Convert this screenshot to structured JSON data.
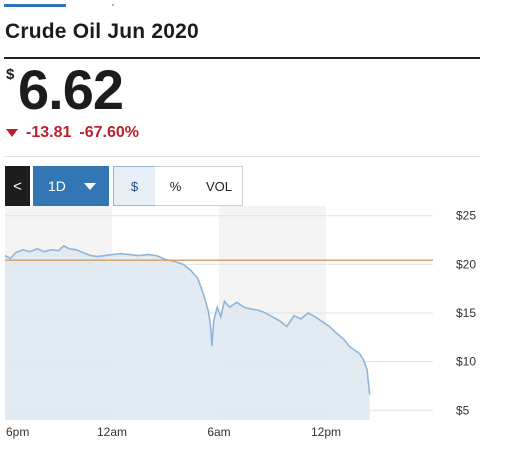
{
  "header": {
    "title": "Crude Oil Jun 2020"
  },
  "quote": {
    "currency_symbol": "$",
    "price": "6.62",
    "change": "-13.81",
    "change_percent": "-67.60%",
    "direction": "down",
    "change_color": "#b8222c"
  },
  "toolbar": {
    "back_icon": "chevron-left-icon",
    "back_glyph": "<",
    "range_label": "1D",
    "range_dropdown_icon": "caret-down-icon",
    "mode_buttons": [
      "$",
      "%",
      "VOL"
    ],
    "selected_mode": "$",
    "accent_color": "#3376b4"
  },
  "chart_data": {
    "type": "area",
    "x_tick_labels": [
      "6pm",
      "12am",
      "6am",
      "12pm"
    ],
    "y_tick_labels": [
      "$25",
      "$20",
      "$15",
      "$10",
      "$5"
    ],
    "ylim": [
      4,
      26
    ],
    "xlim_hours_after_6pm": [
      0,
      24
    ],
    "previous_close": 20.43,
    "previous_close_color": "#d99a63",
    "series_color": "#8fb6da",
    "fill_color": "#dde7f0",
    "series": [
      {
        "points": [
          [
            0,
            20.9
          ],
          [
            0.3,
            20.6
          ],
          [
            0.6,
            21.2
          ],
          [
            1.0,
            21.5
          ],
          [
            1.4,
            21.3
          ],
          [
            1.8,
            21.6
          ],
          [
            2.2,
            21.3
          ],
          [
            2.6,
            21.5
          ],
          [
            3.0,
            21.4
          ],
          [
            3.3,
            21.9
          ],
          [
            3.6,
            21.6
          ],
          [
            4.0,
            21.5
          ],
          [
            4.4,
            21.2
          ],
          [
            4.8,
            20.9
          ],
          [
            5.2,
            20.8
          ],
          [
            5.6,
            20.9
          ],
          [
            6.0,
            21.0
          ],
          [
            6.5,
            21.1
          ],
          [
            7.0,
            21.0
          ],
          [
            7.5,
            20.9
          ],
          [
            8.0,
            21.0
          ],
          [
            8.5,
            20.9
          ],
          [
            9.0,
            20.5
          ],
          [
            9.5,
            20.3
          ],
          [
            10.0,
            20.0
          ],
          [
            10.4,
            19.4
          ],
          [
            10.8,
            18.6
          ],
          [
            11.0,
            17.6
          ],
          [
            11.2,
            16.5
          ],
          [
            11.4,
            15.2
          ],
          [
            11.5,
            14.0
          ],
          [
            11.55,
            13.0
          ],
          [
            11.6,
            11.6
          ],
          [
            11.7,
            14.2
          ],
          [
            11.9,
            15.6
          ],
          [
            12.1,
            14.6
          ],
          [
            12.3,
            16.2
          ],
          [
            12.6,
            15.6
          ],
          [
            13.0,
            16.1
          ],
          [
            13.4,
            15.6
          ],
          [
            13.8,
            15.4
          ],
          [
            14.2,
            15.3
          ],
          [
            14.6,
            15.0
          ],
          [
            15.0,
            14.6
          ],
          [
            15.4,
            14.2
          ],
          [
            15.8,
            13.6
          ],
          [
            16.2,
            14.7
          ],
          [
            16.6,
            14.4
          ],
          [
            17.0,
            15.0
          ],
          [
            17.4,
            14.6
          ],
          [
            17.8,
            14.1
          ],
          [
            18.2,
            13.6
          ],
          [
            18.6,
            12.9
          ],
          [
            19.0,
            12.3
          ],
          [
            19.3,
            11.6
          ],
          [
            19.6,
            11.2
          ],
          [
            19.9,
            10.8
          ],
          [
            20.1,
            10.2
          ],
          [
            20.3,
            9.2
          ],
          [
            20.45,
            6.62
          ]
        ]
      }
    ],
    "grid": true,
    "shaded_columns": true
  }
}
